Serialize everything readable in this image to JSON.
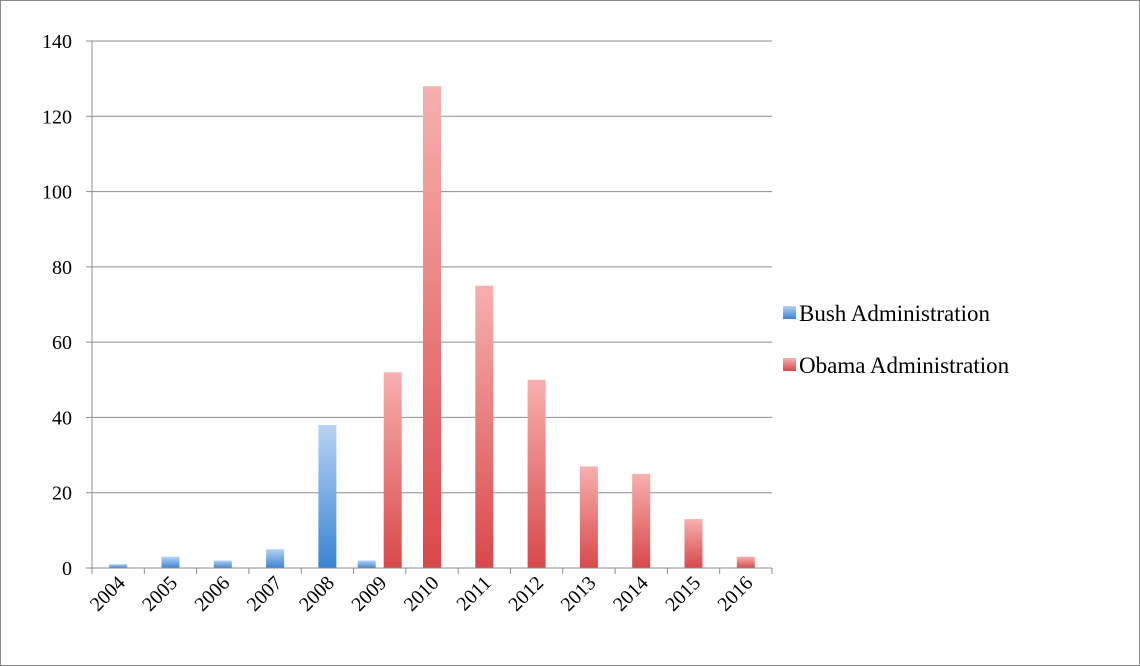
{
  "chart_data": {
    "type": "bar",
    "categories": [
      "2004",
      "2005",
      "2006",
      "2007",
      "2008",
      "2009",
      "2010",
      "2011",
      "2012",
      "2013",
      "2014",
      "2015",
      "2016"
    ],
    "series": [
      {
        "name": "Bush Administration",
        "color": "#3c86d4",
        "values": [
          1,
          3,
          2,
          5,
          38,
          2,
          null,
          null,
          null,
          null,
          null,
          null,
          null
        ]
      },
      {
        "name": "Obama Administration",
        "color": "#d9484a",
        "values": [
          null,
          null,
          null,
          null,
          null,
          52,
          128,
          75,
          50,
          27,
          25,
          13,
          3
        ]
      }
    ],
    "ylim": [
      0,
      140
    ],
    "yticks": [
      0,
      20,
      40,
      60,
      80,
      100,
      120,
      140
    ],
    "grid": true,
    "legend_position": "right"
  }
}
